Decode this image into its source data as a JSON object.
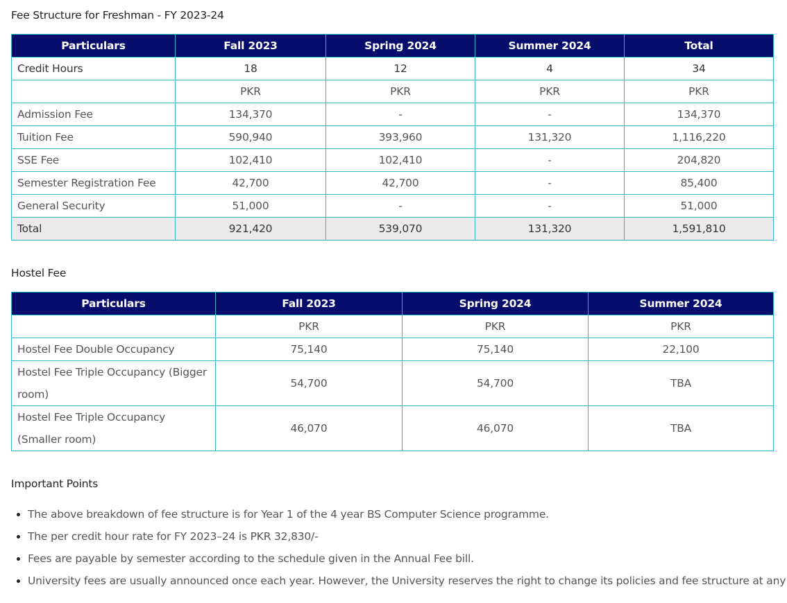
{
  "fee_structure": {
    "title": "Fee Structure for Freshman - FY 2023-24",
    "headers": [
      "Particulars",
      "Fall 2023",
      "Spring 2024",
      "Summer 2024",
      "Total"
    ],
    "credit_hours": {
      "label": "Credit Hours",
      "values": [
        "18",
        "12",
        "4",
        "34"
      ]
    },
    "currency_row": {
      "label": "",
      "values": [
        "PKR",
        "PKR",
        "PKR",
        "PKR"
      ]
    },
    "rows": [
      {
        "label": "Admission Fee",
        "values": [
          "134,370",
          "-",
          "-",
          "134,370"
        ]
      },
      {
        "label": "Tuition Fee",
        "values": [
          "590,940",
          "393,960",
          "131,320",
          "1,116,220"
        ]
      },
      {
        "label": "SSE Fee",
        "values": [
          "102,410",
          "102,410",
          "-",
          "204,820"
        ]
      },
      {
        "label": "Semester Registration Fee",
        "values": [
          "42,700",
          "42,700",
          "-",
          "85,400"
        ]
      },
      {
        "label": "General Security",
        "values": [
          "51,000",
          "-",
          "-",
          "51,000"
        ]
      }
    ],
    "total": {
      "label": "Total",
      "values": [
        "921,420",
        "539,070",
        "131,320",
        "1,591,810"
      ]
    }
  },
  "hostel_fee": {
    "title": "Hostel Fee",
    "headers": [
      "Particulars",
      "Fall 2023",
      "Spring 2024",
      "Summer 2024"
    ],
    "currency_row": {
      "label": "",
      "values": [
        "PKR",
        "PKR",
        "PKR"
      ]
    },
    "rows": [
      {
        "label": "Hostel Fee Double Occupancy",
        "values": [
          "75,140",
          "75,140",
          "22,100"
        ]
      },
      {
        "label": "Hostel Fee Triple Occupancy (Bigger room)",
        "values": [
          "54,700",
          "54,700",
          "TBA"
        ]
      },
      {
        "label": "Hostel Fee Triple Occupancy (Smaller room)",
        "values": [
          "46,070",
          "46,070",
          "TBA"
        ]
      }
    ]
  },
  "important_points": {
    "title": "Important Points",
    "items": [
      "The above breakdown of fee structure is for Year 1 of the 4 year BS Computer Science programme.",
      "The per credit hour rate for FY 2023–24 is PKR 32,830/-",
      "Fees are payable by semester according to the schedule given in the Annual Fee bill.",
      "University fees are usually announced once each year. However, the University reserves the right to change its policies and fee structure at any time."
    ]
  }
}
